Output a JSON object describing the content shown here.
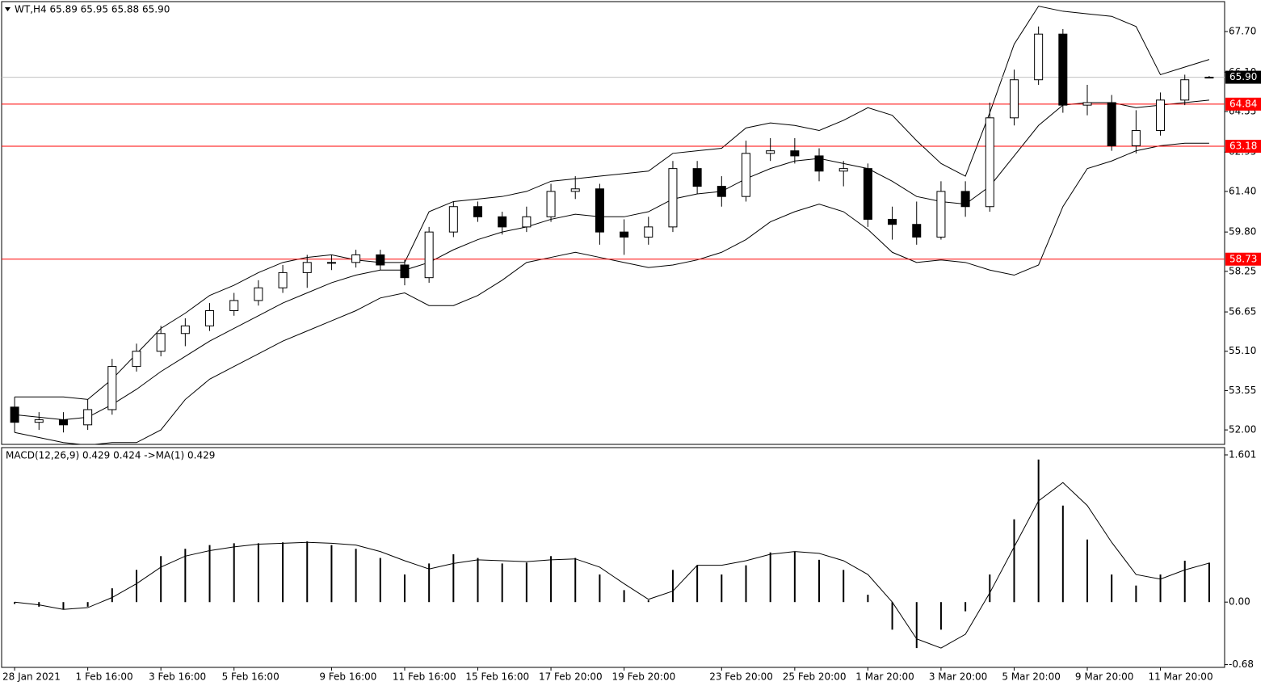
{
  "chart_data": [
    {
      "type": "candlestick",
      "header": "WT,H4  65.89 65.95 65.88 65.90",
      "categories": [
        "28 Jan 2021",
        null,
        null,
        "1 Feb 16:00",
        null,
        null,
        "3 Feb 16:00",
        null,
        null,
        "5 Feb 16:00",
        null,
        null,
        null,
        "9 Feb 16:00",
        null,
        null,
        "11 Feb 16:00",
        null,
        null,
        "15 Feb 16:00",
        null,
        null,
        "17 Feb 20:00",
        null,
        null,
        "19 Feb 20:00",
        null,
        null,
        null,
        "23 Feb 20:00",
        null,
        null,
        "25 Feb 20:00",
        null,
        null,
        "1 Mar 20:00",
        null,
        null,
        "3 Mar 20:00",
        null,
        null,
        "5 Mar 20:00",
        null,
        null,
        "9 Mar 20:00",
        null,
        null,
        "11 Mar 20:00",
        null,
        null
      ],
      "open": [
        52.9,
        52.3,
        52.4,
        52.2,
        52.8,
        54.5,
        55.1,
        55.8,
        56.1,
        56.7,
        57.1,
        57.6,
        58.2,
        58.6,
        58.6,
        58.9,
        58.5,
        58.0,
        59.8,
        60.8,
        60.4,
        60.0,
        60.4,
        61.4,
        61.5,
        59.8,
        59.6,
        60.0,
        62.3,
        61.6,
        61.2,
        62.9,
        63.0,
        62.8,
        62.2,
        62.3,
        60.3,
        60.1,
        59.6,
        61.4,
        60.8,
        64.3,
        65.8,
        67.6,
        64.8,
        64.9,
        63.2,
        63.8,
        65.0,
        65.89
      ],
      "high": [
        53.3,
        52.7,
        52.7,
        53.2,
        54.8,
        55.4,
        56.1,
        56.4,
        57.0,
        57.4,
        57.9,
        58.5,
        58.9,
        58.9,
        59.1,
        59.1,
        58.7,
        60.0,
        61.0,
        61.0,
        60.6,
        60.8,
        61.7,
        62.0,
        61.7,
        60.3,
        60.4,
        62.6,
        62.6,
        62.0,
        63.4,
        63.5,
        63.5,
        63.1,
        62.6,
        62.5,
        60.8,
        61.0,
        61.8,
        61.8,
        64.9,
        66.2,
        67.9,
        67.8,
        65.6,
        65.2,
        64.6,
        65.3,
        66.0,
        65.95
      ],
      "low": [
        51.9,
        52.0,
        51.9,
        52.0,
        52.6,
        54.3,
        54.9,
        55.3,
        55.9,
        56.5,
        56.9,
        57.4,
        57.6,
        58.3,
        58.4,
        58.3,
        57.7,
        57.8,
        59.6,
        60.2,
        59.7,
        59.8,
        60.2,
        61.1,
        59.3,
        58.9,
        59.3,
        59.8,
        61.3,
        60.8,
        61.0,
        62.6,
        62.5,
        61.8,
        61.6,
        60.0,
        59.5,
        59.3,
        59.5,
        60.4,
        60.6,
        64.0,
        65.6,
        64.5,
        64.4,
        63.0,
        62.9,
        63.6,
        64.8,
        65.88
      ],
      "close": [
        52.3,
        52.4,
        52.2,
        52.8,
        54.5,
        55.1,
        55.8,
        56.1,
        56.7,
        57.1,
        57.6,
        58.2,
        58.6,
        58.6,
        58.9,
        58.5,
        58.0,
        59.8,
        60.8,
        60.4,
        60.0,
        60.4,
        61.4,
        61.5,
        59.8,
        59.6,
        60.0,
        62.3,
        61.6,
        61.2,
        62.9,
        63.0,
        62.8,
        62.2,
        62.3,
        60.3,
        60.1,
        59.6,
        61.4,
        60.8,
        64.3,
        65.8,
        67.6,
        64.8,
        64.9,
        63.2,
        63.8,
        65.0,
        65.8,
        65.9
      ],
      "series": [
        {
          "color": "#000000",
          "values": [
            53.3,
            53.3,
            53.3,
            53.2,
            54.0,
            55.0,
            56.0,
            56.6,
            57.3,
            57.7,
            58.2,
            58.6,
            58.8,
            58.9,
            58.7,
            58.6,
            58.6,
            60.6,
            61.0,
            61.1,
            61.2,
            61.4,
            61.8,
            61.9,
            62.0,
            62.1,
            62.2,
            62.9,
            63.0,
            63.1,
            63.9,
            64.1,
            64.0,
            63.8,
            64.2,
            64.7,
            64.4,
            63.4,
            62.5,
            62.0,
            64.5,
            67.2,
            68.7,
            68.5,
            68.4,
            68.3,
            67.9,
            66.0,
            66.3,
            66.6
          ]
        },
        {
          "color": "#000000",
          "values": [
            52.6,
            52.5,
            52.4,
            52.5,
            53.0,
            53.6,
            54.3,
            54.9,
            55.5,
            56.0,
            56.5,
            57.0,
            57.4,
            57.8,
            58.1,
            58.3,
            58.3,
            58.6,
            59.1,
            59.5,
            59.8,
            60.0,
            60.3,
            60.5,
            60.4,
            60.4,
            60.6,
            61.1,
            61.3,
            61.4,
            61.9,
            62.3,
            62.6,
            62.7,
            62.5,
            62.3,
            61.8,
            61.2,
            61.0,
            60.9,
            61.6,
            62.8,
            64.0,
            64.8,
            64.9,
            64.9,
            64.7,
            64.8,
            64.9,
            65.0
          ]
        },
        {
          "color": "#000000",
          "values": [
            51.9,
            51.7,
            51.5,
            51.4,
            51.5,
            51.5,
            52.0,
            53.2,
            54.0,
            54.5,
            55.0,
            55.5,
            55.9,
            56.3,
            56.7,
            57.2,
            57.4,
            56.9,
            56.9,
            57.3,
            57.9,
            58.6,
            58.8,
            59.0,
            58.8,
            58.6,
            58.4,
            58.5,
            58.7,
            59.0,
            59.5,
            60.2,
            60.6,
            60.9,
            60.6,
            59.9,
            59.0,
            58.6,
            58.7,
            58.6,
            58.3,
            58.1,
            58.5,
            60.8,
            62.3,
            62.6,
            63.0,
            63.2,
            63.3,
            63.3
          ]
        }
      ],
      "ylim": [
        51.43,
        68.88
      ],
      "yticks": [
        {
          "value": 67.7,
          "label": "67.70"
        },
        {
          "value": 66.1,
          "label": "66.10"
        },
        64.55,
        62.95,
        {
          "value": 61.4,
          "label": "61.40"
        },
        {
          "value": 59.8,
          "label": "59.80"
        },
        58.25,
        56.65,
        {
          "value": 55.1,
          "label": "55.10"
        },
        53.55,
        {
          "value": 52,
          "label": "52.00"
        }
      ],
      "levels": [
        {
          "value": 64.84,
          "color": "#ff0000"
        },
        {
          "value": 63.18,
          "color": "#ff0000"
        },
        {
          "value": 58.73,
          "color": "#ff0000"
        }
      ],
      "current_price": {
        "value": 65.9,
        "label": "65.90",
        "color": "#c0c0c0"
      }
    },
    {
      "type": "macd",
      "header": "MACD(12,26,9) 0.429 0.424  ->MA(1) 0.429",
      "values": [
        -0.02,
        -0.05,
        -0.08,
        -0.05,
        0.15,
        0.35,
        0.5,
        0.58,
        0.62,
        0.64,
        0.64,
        0.65,
        0.66,
        0.62,
        0.58,
        0.48,
        0.3,
        0.42,
        0.52,
        0.48,
        0.42,
        0.43,
        0.5,
        0.48,
        0.3,
        0.13,
        0.02,
        0.35,
        0.4,
        0.3,
        0.4,
        0.54,
        0.55,
        0.46,
        0.35,
        0.08,
        -0.3,
        -0.5,
        -0.3,
        -0.1,
        0.3,
        0.9,
        1.55,
        1.05,
        0.68,
        0.3,
        0.18,
        0.3,
        0.45,
        0.429
      ],
      "signal": [
        0.0,
        -0.03,
        -0.08,
        -0.06,
        0.05,
        0.2,
        0.38,
        0.5,
        0.56,
        0.6,
        0.63,
        0.64,
        0.65,
        0.64,
        0.62,
        0.55,
        0.45,
        0.36,
        0.42,
        0.46,
        0.45,
        0.44,
        0.46,
        0.47,
        0.38,
        0.2,
        0.03,
        0.12,
        0.4,
        0.4,
        0.45,
        0.52,
        0.55,
        0.53,
        0.45,
        0.3,
        0.0,
        -0.4,
        -0.5,
        -0.35,
        0.1,
        0.6,
        1.1,
        1.3,
        1.05,
        0.65,
        0.3,
        0.25,
        0.35,
        0.424
      ],
      "ylim": [
        -0.71,
        1.68
      ],
      "yticks": [
        1.601,
        {
          "value": 0,
          "label": "0.00"
        },
        -0.68
      ]
    }
  ]
}
